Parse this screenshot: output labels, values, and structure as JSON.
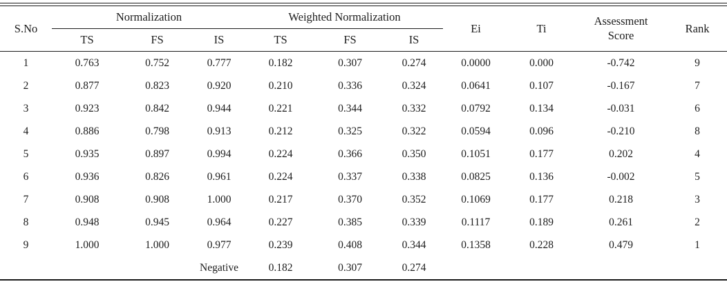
{
  "table": {
    "header": {
      "sno": "S.No",
      "normalization": "Normalization",
      "weighted_normalization": "Weighted Normalization",
      "sub_norm": [
        "TS",
        "FS",
        "IS"
      ],
      "sub_weighted": [
        "TS",
        "FS",
        "IS"
      ],
      "ei": "Ei",
      "ti": "Ti",
      "assessment_score": "Assessment Score",
      "rank": "Rank"
    },
    "rows": [
      [
        "1",
        "0.763",
        "0.752",
        "0.777",
        "0.182",
        "0.307",
        "0.274",
        "0.0000",
        "0.000",
        "-0.742",
        "9"
      ],
      [
        "2",
        "0.877",
        "0.823",
        "0.920",
        "0.210",
        "0.336",
        "0.324",
        "0.0641",
        "0.107",
        "-0.167",
        "7"
      ],
      [
        "3",
        "0.923",
        "0.842",
        "0.944",
        "0.221",
        "0.344",
        "0.332",
        "0.0792",
        "0.134",
        "-0.031",
        "6"
      ],
      [
        "4",
        "0.886",
        "0.798",
        "0.913",
        "0.212",
        "0.325",
        "0.322",
        "0.0594",
        "0.096",
        "-0.210",
        "8"
      ],
      [
        "5",
        "0.935",
        "0.897",
        "0.994",
        "0.224",
        "0.366",
        "0.350",
        "0.1051",
        "0.177",
        "0.202",
        "4"
      ],
      [
        "6",
        "0.936",
        "0.826",
        "0.961",
        "0.224",
        "0.337",
        "0.338",
        "0.0825",
        "0.136",
        "-0.002",
        "5"
      ],
      [
        "7",
        "0.908",
        "0.908",
        "1.000",
        "0.217",
        "0.370",
        "0.352",
        "0.1069",
        "0.177",
        "0.218",
        "3"
      ],
      [
        "8",
        "0.948",
        "0.945",
        "0.964",
        "0.227",
        "0.385",
        "0.339",
        "0.1117",
        "0.189",
        "0.261",
        "2"
      ],
      [
        "9",
        "1.000",
        "1.000",
        "0.977",
        "0.239",
        "0.408",
        "0.344",
        "0.1358",
        "0.228",
        "0.479",
        "1"
      ],
      [
        "",
        "",
        "",
        "Negative",
        "0.182",
        "0.307",
        "0.274",
        "",
        "",
        "",
        ""
      ]
    ]
  },
  "colors": {
    "text": "#1c1c1c",
    "rule": "#1a1a1a",
    "background": "#ffffff"
  }
}
